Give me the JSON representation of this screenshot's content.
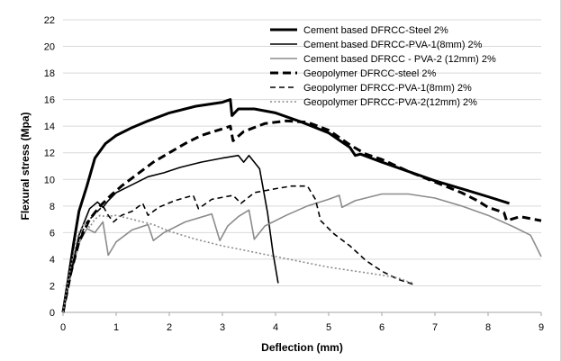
{
  "chart_data": {
    "type": "line",
    "title": "",
    "xlabel": "Deflection (mm)",
    "ylabel": "Flexural stress (Mpa)",
    "xlim": [
      0,
      9
    ],
    "ylim": [
      0,
      22
    ],
    "xticks": [
      0,
      1,
      2,
      3,
      4,
      5,
      6,
      7,
      8,
      9
    ],
    "yticks": [
      0,
      2,
      4,
      6,
      8,
      10,
      12,
      14,
      16,
      18,
      20,
      22
    ],
    "grid": "horizontal",
    "legend_position": "top-right",
    "series": [
      {
        "name": "Cement based DFRCC-Steel 2%",
        "color": "#000000",
        "style": "solid-thick",
        "points": [
          [
            0,
            0
          ],
          [
            0.1,
            2.5
          ],
          [
            0.2,
            5.2
          ],
          [
            0.3,
            7.6
          ],
          [
            0.45,
            9.5
          ],
          [
            0.6,
            11.6
          ],
          [
            0.8,
            12.7
          ],
          [
            1.0,
            13.3
          ],
          [
            1.3,
            13.9
          ],
          [
            1.6,
            14.4
          ],
          [
            2.0,
            15.0
          ],
          [
            2.5,
            15.5
          ],
          [
            3.0,
            15.8
          ],
          [
            3.15,
            16.0
          ],
          [
            3.18,
            14.8
          ],
          [
            3.3,
            15.3
          ],
          [
            3.6,
            15.3
          ],
          [
            4.0,
            15.0
          ],
          [
            4.5,
            14.3
          ],
          [
            5.0,
            13.5
          ],
          [
            5.4,
            12.4
          ],
          [
            5.5,
            11.8
          ],
          [
            5.6,
            11.9
          ],
          [
            6.0,
            11.3
          ],
          [
            6.5,
            10.6
          ],
          [
            7.0,
            9.9
          ],
          [
            7.5,
            9.3
          ],
          [
            8.0,
            8.7
          ],
          [
            8.4,
            8.2
          ]
        ]
      },
      {
        "name": "Cement based DFRCC-PVA-1(8mm) 2%",
        "color": "#000000",
        "style": "solid-thin",
        "points": [
          [
            0,
            0
          ],
          [
            0.15,
            3.0
          ],
          [
            0.3,
            5.8
          ],
          [
            0.5,
            7.8
          ],
          [
            0.65,
            8.3
          ],
          [
            0.75,
            7.9
          ],
          [
            0.85,
            8.4
          ],
          [
            1.0,
            9.0
          ],
          [
            1.3,
            9.6
          ],
          [
            1.6,
            10.2
          ],
          [
            1.9,
            10.5
          ],
          [
            2.2,
            10.9
          ],
          [
            2.6,
            11.3
          ],
          [
            3.0,
            11.6
          ],
          [
            3.3,
            11.8
          ],
          [
            3.4,
            11.3
          ],
          [
            3.5,
            11.8
          ],
          [
            3.7,
            10.8
          ],
          [
            3.85,
            7.5
          ],
          [
            3.95,
            4.5
          ],
          [
            4.05,
            2.2
          ]
        ]
      },
      {
        "name": "Cement based DFRCC - PVA-2 (12mm) 2%",
        "color": "#8c8c8c",
        "style": "solid-thin",
        "points": [
          [
            0,
            0
          ],
          [
            0.15,
            2.8
          ],
          [
            0.3,
            5.2
          ],
          [
            0.45,
            6.3
          ],
          [
            0.6,
            6.0
          ],
          [
            0.75,
            6.8
          ],
          [
            0.85,
            4.3
          ],
          [
            1.0,
            5.3
          ],
          [
            1.3,
            6.2
          ],
          [
            1.6,
            6.6
          ],
          [
            1.7,
            5.4
          ],
          [
            1.9,
            6.0
          ],
          [
            2.3,
            6.8
          ],
          [
            2.8,
            7.4
          ],
          [
            2.95,
            5.4
          ],
          [
            3.1,
            6.5
          ],
          [
            3.3,
            7.2
          ],
          [
            3.5,
            7.7
          ],
          [
            3.6,
            5.5
          ],
          [
            3.8,
            6.5
          ],
          [
            4.2,
            7.3
          ],
          [
            4.6,
            8.0
          ],
          [
            5.0,
            8.5
          ],
          [
            5.2,
            8.8
          ],
          [
            5.25,
            7.9
          ],
          [
            5.5,
            8.4
          ],
          [
            6.0,
            8.9
          ],
          [
            6.5,
            8.9
          ],
          [
            7.0,
            8.6
          ],
          [
            7.5,
            8.0
          ],
          [
            8.0,
            7.3
          ],
          [
            8.5,
            6.4
          ],
          [
            8.8,
            5.8
          ],
          [
            9.0,
            4.2
          ]
        ]
      },
      {
        "name": "Geopolymer DFRCC-steel 2%",
        "color": "#000000",
        "style": "dash-thick",
        "points": [
          [
            0,
            0
          ],
          [
            0.15,
            3.0
          ],
          [
            0.3,
            5.3
          ],
          [
            0.5,
            7.0
          ],
          [
            0.7,
            8.0
          ],
          [
            0.9,
            8.8
          ],
          [
            1.1,
            9.5
          ],
          [
            1.4,
            10.4
          ],
          [
            1.7,
            11.3
          ],
          [
            2.0,
            12.0
          ],
          [
            2.3,
            12.7
          ],
          [
            2.6,
            13.3
          ],
          [
            3.0,
            13.8
          ],
          [
            3.15,
            14.0
          ],
          [
            3.2,
            12.9
          ],
          [
            3.4,
            13.6
          ],
          [
            3.8,
            14.2
          ],
          [
            4.2,
            14.4
          ],
          [
            4.6,
            14.3
          ],
          [
            5.0,
            13.7
          ],
          [
            5.4,
            12.6
          ],
          [
            5.7,
            11.9
          ],
          [
            6.0,
            11.5
          ],
          [
            6.5,
            10.6
          ],
          [
            7.0,
            9.8
          ],
          [
            7.5,
            9.0
          ],
          [
            7.8,
            8.4
          ],
          [
            8.0,
            7.9
          ],
          [
            8.3,
            7.5
          ],
          [
            8.35,
            6.9
          ],
          [
            8.6,
            7.2
          ],
          [
            9.0,
            6.9
          ]
        ]
      },
      {
        "name": "Geopolymer DFRCC-PVA-1(8mm) 2%",
        "color": "#000000",
        "style": "dash-thin",
        "points": [
          [
            0,
            0
          ],
          [
            0.15,
            3.0
          ],
          [
            0.3,
            5.5
          ],
          [
            0.45,
            6.8
          ],
          [
            0.6,
            7.4
          ],
          [
            0.75,
            8.0
          ],
          [
            0.85,
            7.3
          ],
          [
            0.95,
            6.8
          ],
          [
            1.1,
            7.3
          ],
          [
            1.3,
            7.6
          ],
          [
            1.5,
            8.2
          ],
          [
            1.6,
            7.3
          ],
          [
            1.8,
            7.9
          ],
          [
            2.1,
            8.4
          ],
          [
            2.45,
            8.8
          ],
          [
            2.55,
            7.8
          ],
          [
            2.8,
            8.5
          ],
          [
            3.2,
            8.8
          ],
          [
            3.35,
            8.2
          ],
          [
            3.6,
            9.0
          ],
          [
            4.0,
            9.3
          ],
          [
            4.3,
            9.5
          ],
          [
            4.6,
            9.5
          ],
          [
            4.75,
            8.5
          ],
          [
            4.85,
            6.9
          ],
          [
            5.1,
            5.9
          ],
          [
            5.4,
            5.0
          ],
          [
            5.7,
            3.9
          ],
          [
            6.0,
            3.1
          ],
          [
            6.3,
            2.5
          ],
          [
            6.6,
            2.1
          ]
        ]
      },
      {
        "name": "Geopolymer DFRCC-PVA-2(12mm) 2%",
        "color": "#8c8c8c",
        "style": "dotted",
        "points": [
          [
            0,
            0
          ],
          [
            0.1,
            2.5
          ],
          [
            0.2,
            4.5
          ],
          [
            0.3,
            6.0
          ],
          [
            0.4,
            6.7
          ],
          [
            0.5,
            6.4
          ],
          [
            0.6,
            7.0
          ],
          [
            0.7,
            7.3
          ],
          [
            0.8,
            7.2
          ],
          [
            1.0,
            7.3
          ],
          [
            1.3,
            7.0
          ],
          [
            1.7,
            6.6
          ],
          [
            2.0,
            6.1
          ],
          [
            2.5,
            5.5
          ],
          [
            3.0,
            5.0
          ],
          [
            3.5,
            4.6
          ],
          [
            4.0,
            4.2
          ],
          [
            4.5,
            3.8
          ],
          [
            5.0,
            3.4
          ],
          [
            5.5,
            3.1
          ],
          [
            6.0,
            2.8
          ],
          [
            6.3,
            2.6
          ],
          [
            6.5,
            2.3
          ],
          [
            6.6,
            2.2
          ]
        ]
      }
    ]
  }
}
